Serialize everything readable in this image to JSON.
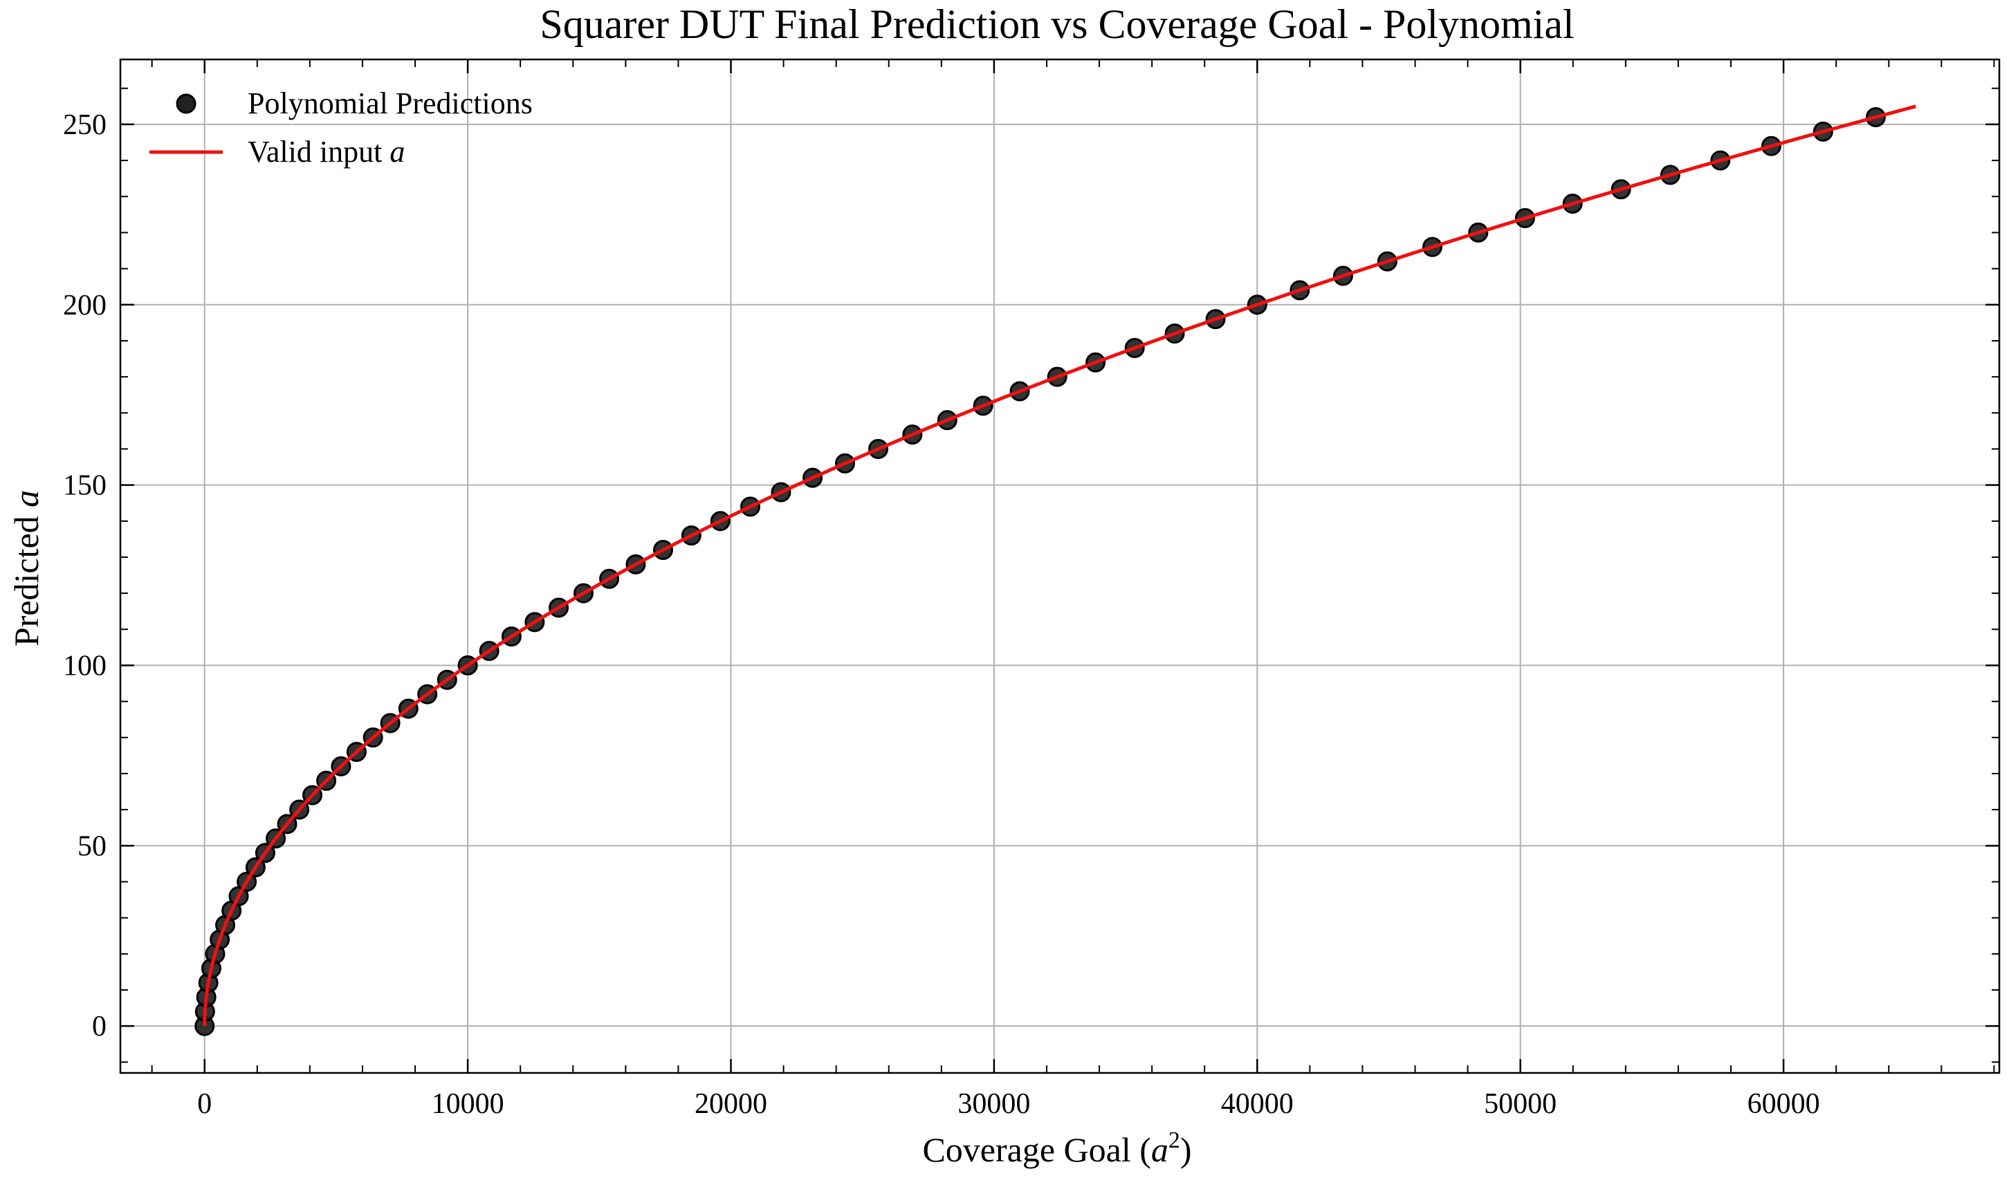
{
  "chart_data": {
    "type": "scatter",
    "title": "Squarer DUT Final Prediction vs Coverage Goal - Polynomial",
    "xlabel": {
      "prefix": "Coverage Goal (",
      "var": "a",
      "sup": "2",
      "suffix": ")"
    },
    "ylabel": {
      "prefix": "Predicted ",
      "var": "a"
    },
    "xlim": [
      -3200,
      68200
    ],
    "ylim": [
      -13,
      268
    ],
    "xticks": [
      0,
      10000,
      20000,
      30000,
      40000,
      50000,
      60000
    ],
    "yticks": [
      0,
      50,
      100,
      150,
      200,
      250
    ],
    "grid": true,
    "legend_position": "top-left",
    "legend": {
      "scatter_label": "Polynomial Predictions",
      "line_label_prefix": "Valid input ",
      "line_label_var": "a"
    },
    "colors": {
      "points": "#222222",
      "line": "#ee1111"
    },
    "series": [
      {
        "name": "Polynomial Predictions",
        "kind": "scatter",
        "x": [
          0,
          16,
          64,
          144,
          256,
          400,
          576,
          784,
          1024,
          1296,
          1600,
          1936,
          2304,
          2704,
          3136,
          3600,
          4096,
          4624,
          5184,
          5776,
          6400,
          7056,
          7744,
          8464,
          9216,
          10000,
          10816,
          11664,
          12544,
          13456,
          14400,
          15376,
          16384,
          17424,
          18496,
          19600,
          20736,
          21904,
          23104,
          24336,
          25600,
          26896,
          28224,
          29584,
          30976,
          32400,
          33856,
          35344,
          36864,
          38416,
          40000,
          41616,
          43264,
          44944,
          46656,
          48400,
          50176,
          51984,
          53824,
          55696,
          57600,
          59536,
          61504,
          63504
        ],
        "y": [
          0,
          4,
          8,
          12,
          16,
          20,
          24,
          28,
          32,
          36,
          40,
          44,
          48,
          52,
          56,
          60,
          64,
          68,
          72,
          76,
          80,
          84,
          88,
          92,
          96,
          100,
          104,
          108,
          112,
          116,
          120,
          124,
          128,
          132,
          136,
          140,
          144,
          148,
          152,
          156,
          160,
          164,
          168,
          172,
          176,
          180,
          184,
          188,
          192,
          196,
          200,
          204,
          208,
          212,
          216,
          220,
          224,
          228,
          232,
          236,
          240,
          244,
          248,
          252
        ]
      },
      {
        "name": "Valid input a",
        "kind": "line",
        "function": "sqrt",
        "x_range": [
          0,
          65025
        ]
      }
    ]
  }
}
